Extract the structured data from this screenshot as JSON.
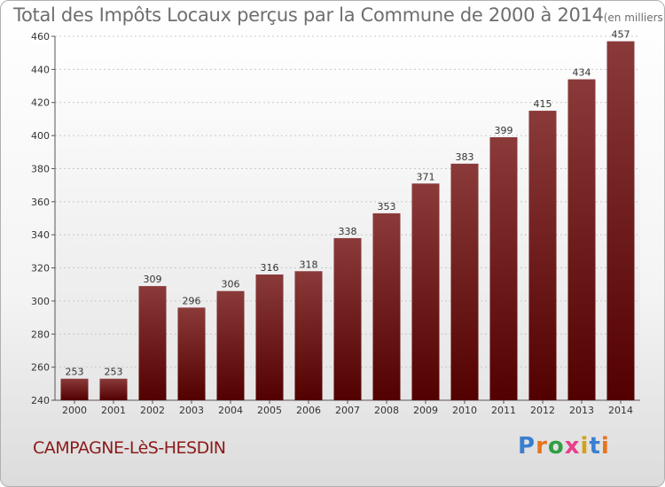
{
  "chart_data": {
    "type": "bar",
    "title": "Total des Impôts Locaux perçus par la Commune de 2000 à 2014",
    "title_unit": "(en milliers d'€)",
    "categories": [
      "2000",
      "2001",
      "2002",
      "2003",
      "2004",
      "2005",
      "2006",
      "2007",
      "2008",
      "2009",
      "2010",
      "2011",
      "2012",
      "2013",
      "2014"
    ],
    "values": [
      253,
      253,
      309,
      296,
      306,
      316,
      318,
      338,
      353,
      371,
      383,
      399,
      415,
      434,
      457
    ],
    "ylim": [
      240,
      460
    ],
    "yticks": [
      240,
      260,
      280,
      300,
      320,
      340,
      360,
      380,
      400,
      420,
      440,
      460
    ],
    "grid": true,
    "bar_color_top": "#8b3a3a",
    "bar_color_bottom": "#520000"
  },
  "footer": {
    "commune": "CAMPAGNE-LèS-HESDIN",
    "logo_text": "Proxiti",
    "logo_colors": [
      "#3a7fd0",
      "#e8731e",
      "#2f9e44",
      "#e83e8c",
      "#d4a017",
      "#3a7fd0",
      "#e8731e"
    ]
  }
}
